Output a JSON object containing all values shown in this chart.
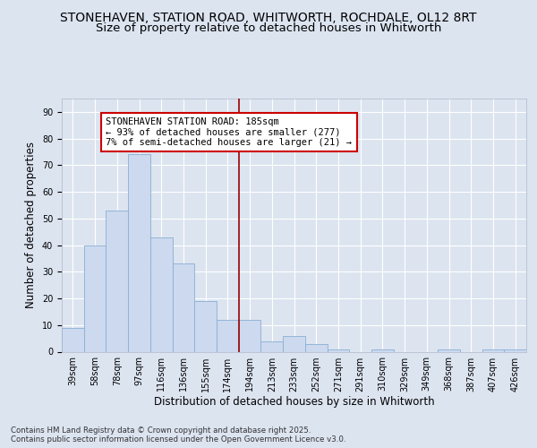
{
  "title_line1": "STONEHAVEN, STATION ROAD, WHITWORTH, ROCHDALE, OL12 8RT",
  "title_line2": "Size of property relative to detached houses in Whitworth",
  "xlabel": "Distribution of detached houses by size in Whitworth",
  "ylabel": "Number of detached properties",
  "bins": [
    "39sqm",
    "58sqm",
    "78sqm",
    "97sqm",
    "116sqm",
    "136sqm",
    "155sqm",
    "174sqm",
    "194sqm",
    "213sqm",
    "233sqm",
    "252sqm",
    "271sqm",
    "291sqm",
    "310sqm",
    "329sqm",
    "349sqm",
    "368sqm",
    "387sqm",
    "407sqm",
    "426sqm"
  ],
  "values": [
    9,
    40,
    53,
    74,
    43,
    33,
    19,
    12,
    12,
    4,
    6,
    3,
    1,
    0,
    1,
    0,
    0,
    1,
    0,
    1,
    1
  ],
  "bar_color": "#ccd9ee",
  "bar_edge_color": "#8aafd4",
  "vline_x_index": 7.5,
  "vline_color": "#990000",
  "annotation_text": "STONEHAVEN STATION ROAD: 185sqm\n← 93% of detached houses are smaller (277)\n7% of semi-detached houses are larger (21) →",
  "annotation_box_facecolor": "#ffffff",
  "annotation_box_edgecolor": "#cc0000",
  "ylim": [
    0,
    95
  ],
  "yticks": [
    0,
    10,
    20,
    30,
    40,
    50,
    60,
    70,
    80,
    90
  ],
  "bg_color": "#dce4f0",
  "plot_bg_color": "#dce4f0",
  "grid_color": "#ffffff",
  "footer_text": "Contains HM Land Registry data © Crown copyright and database right 2025.\nContains public sector information licensed under the Open Government Licence v3.0.",
  "title_fontsize": 10,
  "subtitle_fontsize": 9.5,
  "axis_label_fontsize": 8.5,
  "tick_fontsize": 7,
  "annotation_fontsize": 7.5
}
